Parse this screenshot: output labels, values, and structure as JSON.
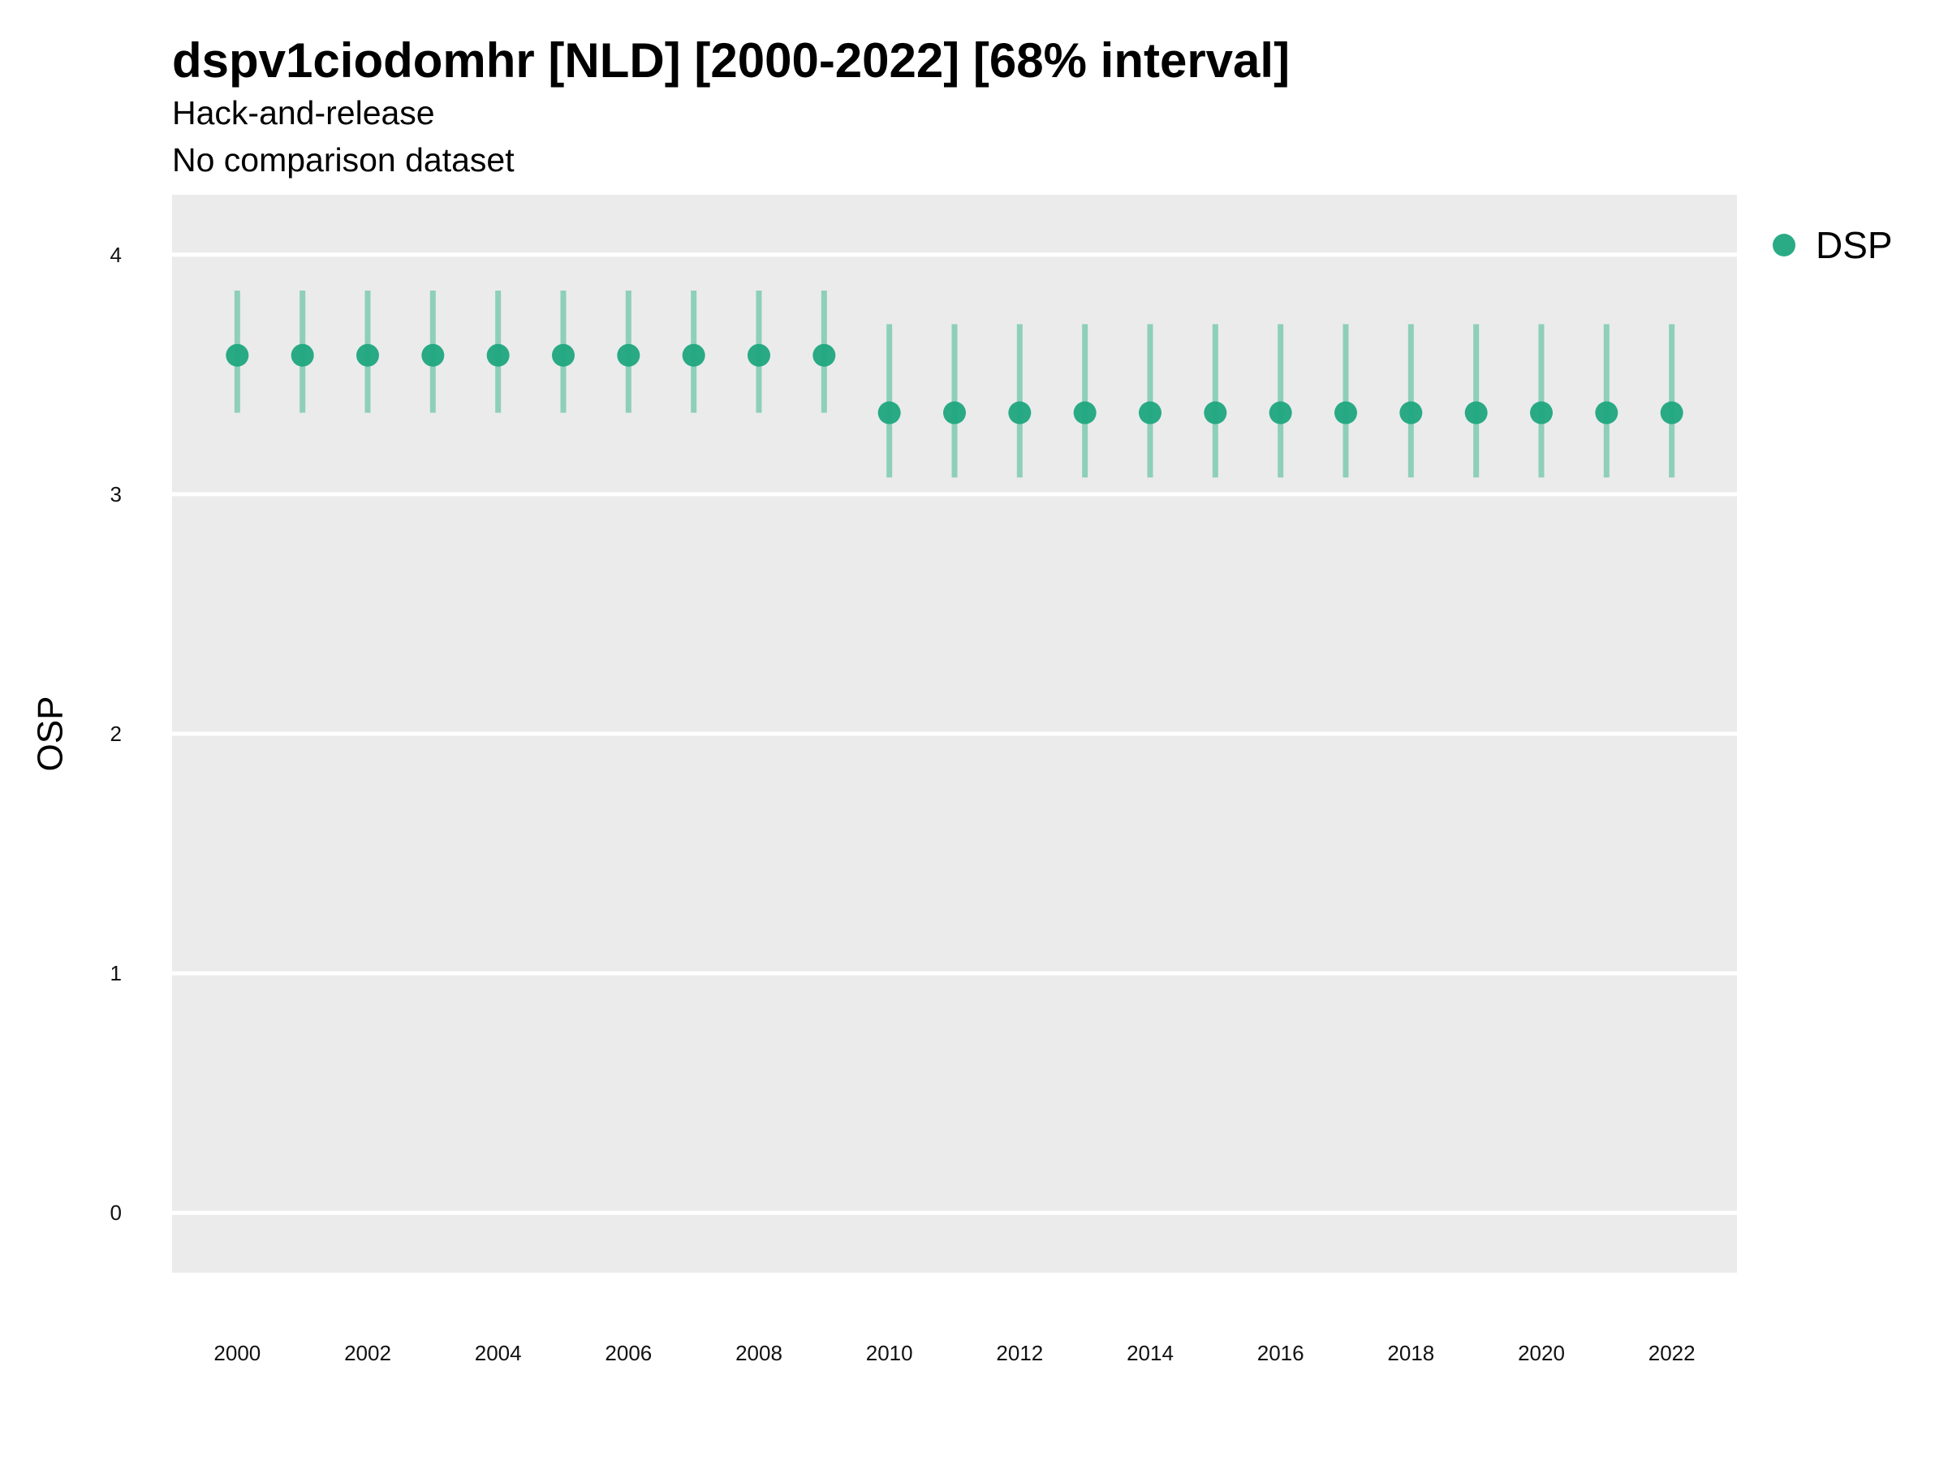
{
  "chart_data": {
    "type": "scatter",
    "title": "dspv1ciodomhr [NLD] [2000-2022] [68% interval]",
    "subtitle_lines": [
      "Hack-and-release",
      "No comparison dataset"
    ],
    "xlabel": "",
    "ylabel": "OSP",
    "xlim": [
      1999,
      2023
    ],
    "ylim": [
      -0.25,
      4.25
    ],
    "x_ticks": [
      2000,
      2002,
      2004,
      2006,
      2008,
      2010,
      2012,
      2014,
      2016,
      2018,
      2020,
      2022
    ],
    "y_ticks": [
      0,
      1,
      2,
      3,
      4
    ],
    "grid": true,
    "legend_position": "right",
    "colors": {
      "point": "#1fa77f",
      "interval": "#8ecfb9",
      "panel": "#ebebeb",
      "grid": "#ffffff"
    },
    "series": [
      {
        "name": "DSP",
        "x": [
          2000,
          2001,
          2002,
          2003,
          2004,
          2005,
          2006,
          2007,
          2008,
          2009,
          2010,
          2011,
          2012,
          2013,
          2014,
          2015,
          2016,
          2017,
          2018,
          2019,
          2020,
          2021,
          2022
        ],
        "y": [
          3.58,
          3.58,
          3.58,
          3.58,
          3.58,
          3.58,
          3.58,
          3.58,
          3.58,
          3.58,
          3.34,
          3.34,
          3.34,
          3.34,
          3.34,
          3.34,
          3.34,
          3.34,
          3.34,
          3.34,
          3.34,
          3.34,
          3.34
        ],
        "lower": [
          3.34,
          3.34,
          3.34,
          3.34,
          3.34,
          3.34,
          3.34,
          3.34,
          3.34,
          3.34,
          3.07,
          3.07,
          3.07,
          3.07,
          3.07,
          3.07,
          3.07,
          3.07,
          3.07,
          3.07,
          3.07,
          3.07,
          3.07
        ],
        "upper": [
          3.85,
          3.85,
          3.85,
          3.85,
          3.85,
          3.85,
          3.85,
          3.85,
          3.85,
          3.85,
          3.71,
          3.71,
          3.71,
          3.71,
          3.71,
          3.71,
          3.71,
          3.71,
          3.71,
          3.71,
          3.71,
          3.71,
          3.71
        ]
      }
    ]
  }
}
